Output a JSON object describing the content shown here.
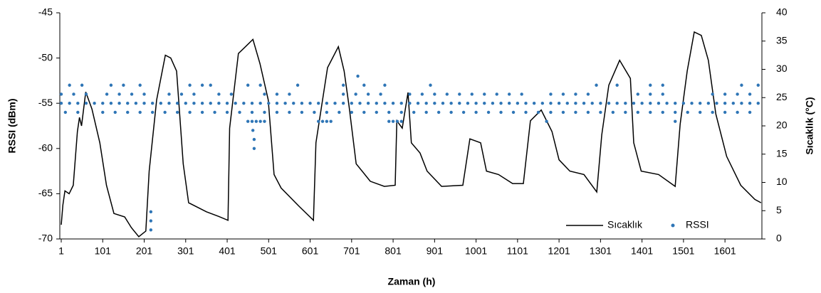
{
  "chart_data": {
    "type": "combo",
    "x_label": "Zaman (h)",
    "y_label": "RSSI (dBm)",
    "y2_label": "Sıcaklık (°C)",
    "xlim": [
      1,
      1690
    ],
    "xticks": [
      1,
      101,
      201,
      301,
      401,
      501,
      601,
      701,
      801,
      901,
      1001,
      1101,
      1201,
      1301,
      1401,
      1501,
      1601
    ],
    "ylim": [
      -70,
      -45
    ],
    "yticks": [
      -70,
      -65,
      -60,
      -55,
      -50,
      -45
    ],
    "y2lim": [
      0,
      40
    ],
    "y2ticks": [
      0,
      5,
      10,
      15,
      20,
      25,
      30,
      35,
      40
    ],
    "grid": false,
    "legend": "lower right",
    "series": [
      {
        "name": "Sıcaklık",
        "type": "line",
        "axis": "y2",
        "color": "#000000",
        "x": [
          1,
          5,
          10,
          20,
          30,
          40,
          45,
          50,
          60,
          75,
          94,
          110,
          128,
          154,
          170,
          188,
          205,
          213,
          231,
          252,
          265,
          279,
          295,
          308,
          351,
          380,
          403,
          407,
          428,
          445,
          463,
          480,
          500,
          514,
          531,
          574,
          609,
          615,
          643,
          669,
          683,
          695,
          712,
          746,
          780,
          806,
          810,
          823,
          837,
          845,
          866,
          883,
          918,
          969,
          986,
          1012,
          1026,
          1055,
          1089,
          1115,
          1132,
          1158,
          1184,
          1201,
          1227,
          1261,
          1292,
          1304,
          1321,
          1347,
          1373,
          1381,
          1399,
          1441,
          1481,
          1493,
          1510,
          1527,
          1544,
          1561,
          1579,
          1605,
          1639,
          1673,
          1688
        ],
        "values": [
          2.5,
          6,
          8.5,
          8,
          9.5,
          19,
          21.5,
          20,
          26,
          23,
          17,
          9.5,
          4.5,
          3.9,
          2,
          0.4,
          1.4,
          12,
          24.6,
          32.5,
          32,
          29.7,
          13.3,
          6.4,
          4.8,
          4,
          3.3,
          19.6,
          32.8,
          34,
          35.3,
          31,
          24.6,
          11.4,
          9,
          5.8,
          3.3,
          17,
          30.3,
          34,
          29.7,
          23.4,
          13.3,
          10.2,
          9.3,
          9.5,
          20.9,
          19.6,
          25.9,
          17,
          15.2,
          12,
          9.3,
          9.5,
          17.7,
          17,
          12,
          11.4,
          9.8,
          9.8,
          20.9,
          22.8,
          19,
          14,
          12,
          11.4,
          8.3,
          18.4,
          27.2,
          31.6,
          28.4,
          17,
          12,
          11.4,
          9.3,
          20.3,
          29.7,
          36.6,
          36,
          31.6,
          22.1,
          14.6,
          9.5,
          7,
          6.4
        ]
      },
      {
        "name": "RSSI",
        "type": "scatter",
        "color": "#2e75b6",
        "x": [
          1,
          21,
          41,
          61,
          81,
          101,
          121,
          141,
          161,
          181,
          201,
          221,
          241,
          261,
          281,
          301,
          321,
          341,
          361,
          381,
          401,
          421,
          441,
          461,
          481,
          501,
          521,
          541,
          561,
          581,
          601,
          621,
          641,
          661,
          681,
          701,
          721,
          741,
          761,
          781,
          801,
          821,
          841,
          861,
          881,
          901,
          921,
          941,
          961,
          981,
          1001,
          1021,
          1041,
          1061,
          1081,
          1101,
          1121,
          1141,
          1161,
          1181,
          1201,
          1221,
          1241,
          1261,
          1281,
          1301,
          1321,
          1341,
          1361,
          1381,
          1401,
          1421,
          1441,
          1461,
          1481,
          1501,
          1521,
          1541,
          1561,
          1581,
          1601,
          1621,
          1641,
          1661,
          1681,
          1,
          31,
          61,
          111,
          141,
          171,
          201,
          261,
          291,
          321,
          381,
          411,
          491,
          521,
          551,
          681,
          711,
          741,
          771,
          841,
          871,
          901,
          931,
          961,
          991,
          1021,
          1051,
          1081,
          1111,
          1181,
          1211,
          1241,
          1271,
          1391,
          1421,
          1451,
          1571,
          1601,
          1631,
          1661,
          11,
          41,
          101,
          131,
          161,
          191,
          221,
          251,
          281,
          311,
          341,
          371,
          401,
          431,
          461,
          491,
          521,
          551,
          581,
          611,
          641,
          671,
          701,
          731,
          761,
          791,
          821,
          851,
          881,
          911,
          941,
          971,
          1001,
          1031,
          1061,
          1091,
          1121,
          1151,
          1181,
          1211,
          1241,
          1271,
          1301,
          1331,
          1361,
          1391,
          1421,
          1451,
          1481,
          1511,
          1541,
          1571,
          1601,
          1631,
          1661,
          21,
          51,
          121,
          151,
          191,
          311,
          341,
          361,
          451,
          481,
          571,
          681,
          731,
          781,
          891,
          1291,
          1341,
          1421,
          1451,
          1641,
          1681,
          451,
          461,
          471,
          481,
          491,
          621,
          631,
          641,
          651,
          791,
          801,
          811,
          821,
          1171,
          1481,
          716,
          463,
          466,
          466,
          217,
          217,
          217
        ],
        "values": [
          -55,
          -55,
          -55,
          -55,
          -55,
          -55,
          -55,
          -55,
          -55,
          -55,
          -55,
          -55,
          -55,
          -55,
          -55,
          -55,
          -55,
          -55,
          -55,
          -55,
          -55,
          -55,
          -55,
          -55,
          -55,
          -55,
          -55,
          -55,
          -55,
          -55,
          -55,
          -55,
          -55,
          -55,
          -55,
          -55,
          -55,
          -55,
          -55,
          -55,
          -55,
          -55,
          -55,
          -55,
          -55,
          -55,
          -55,
          -55,
          -55,
          -55,
          -55,
          -55,
          -55,
          -55,
          -55,
          -55,
          -55,
          -55,
          -55,
          -55,
          -55,
          -55,
          -55,
          -55,
          -55,
          -55,
          -55,
          -55,
          -55,
          -55,
          -55,
          -55,
          -55,
          -55,
          -55,
          -55,
          -55,
          -55,
          -55,
          -55,
          -55,
          -55,
          -55,
          -55,
          -55,
          -54,
          -54,
          -54,
          -54,
          -54,
          -54,
          -54,
          -54,
          -54,
          -54,
          -54,
          -54,
          -54,
          -54,
          -54,
          -54,
          -54,
          -54,
          -54,
          -54,
          -54,
          -54,
          -54,
          -54,
          -54,
          -54,
          -54,
          -54,
          -54,
          -54,
          -54,
          -54,
          -54,
          -54,
          -54,
          -54,
          -54,
          -54,
          -54,
          -54,
          -56,
          -56,
          -56,
          -56,
          -56,
          -56,
          -56,
          -56,
          -56,
          -56,
          -56,
          -56,
          -56,
          -56,
          -56,
          -56,
          -56,
          -56,
          -56,
          -56,
          -56,
          -56,
          -56,
          -56,
          -56,
          -56,
          -56,
          -56,
          -56,
          -56,
          -56,
          -56,
          -56,
          -56,
          -56,
          -56,
          -56,
          -56,
          -56,
          -56,
          -56,
          -56,
          -56,
          -56,
          -56,
          -56,
          -56,
          -56,
          -56,
          -56,
          -56,
          -56,
          -56,
          -56,
          -56,
          -53,
          -53,
          -53,
          -53,
          -53,
          -53,
          -53,
          -53,
          -53,
          -53,
          -53,
          -53,
          -53,
          -53,
          -53,
          -53,
          -53,
          -53,
          -53,
          -53,
          -53,
          -57,
          -57,
          -57,
          -57,
          -57,
          -57,
          -57,
          -57,
          -57,
          -57,
          -57,
          -57,
          -57,
          -57,
          -57,
          -52,
          -58,
          -59,
          -60,
          -67,
          -68,
          -69
        ]
      }
    ]
  }
}
